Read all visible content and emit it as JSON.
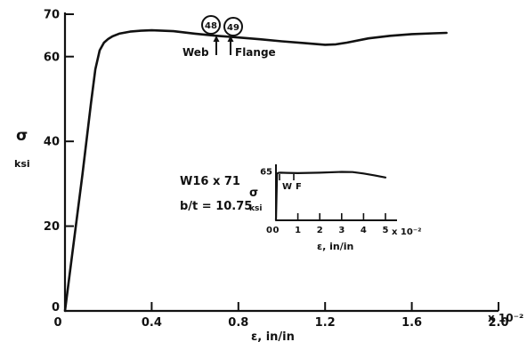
{
  "chart_data": [
    {
      "type": "line",
      "xlabel": "ε, in/in",
      "ylabel": "σ",
      "ylabel_unit": "ksi",
      "x_unit_multiplier": "x 10⁻²",
      "xlim": [
        0,
        2.0
      ],
      "ylim": [
        0,
        70
      ],
      "x_ticks": [
        "0",
        "0.4",
        "0.8",
        "1.2",
        "1.6",
        "2.0"
      ],
      "y_ticks": [
        "0",
        "20",
        "40",
        "60",
        "70"
      ],
      "grid": false,
      "series": [
        {
          "x": [
            0,
            0.03,
            0.08,
            0.12,
            0.14,
            0.16,
            0.18,
            0.2,
            0.22,
            0.25,
            0.3,
            0.35,
            0.4,
            0.5,
            0.6,
            0.7,
            0.8,
            0.9,
            1.0,
            1.1,
            1.2,
            1.25,
            1.3,
            1.4,
            1.5,
            1.6,
            1.7,
            1.76
          ],
          "values": [
            0,
            12,
            32,
            49,
            57,
            61.5,
            63.3,
            64.2,
            64.8,
            65.4,
            65.9,
            66.1,
            66.2,
            66.0,
            65.4,
            64.9,
            64.5,
            64.1,
            63.6,
            63.2,
            62.8,
            62.9,
            63.3,
            64.3,
            64.9,
            65.3,
            65.5,
            65.6
          ]
        }
      ],
      "annotations": [
        {
          "label": "48",
          "text": "Web",
          "x": 0.7
        },
        {
          "label": "49",
          "text": "Flange",
          "x": 0.76
        }
      ],
      "text_labels": [
        "W16 x 71",
        "b/t = 10.75"
      ]
    },
    {
      "type": "line",
      "xlabel": "ε, in/in",
      "ylabel": "σ",
      "ylabel_unit": "ksi",
      "x_unit_multiplier": "x 10⁻²",
      "xlim": [
        0,
        5
      ],
      "ylim": [
        0,
        65
      ],
      "x_ticks": [
        "0",
        "1",
        "2",
        "3",
        "4",
        "5"
      ],
      "y_ticks": [
        "0",
        "65"
      ],
      "grid": false,
      "series": [
        {
          "x": [
            0,
            0.05,
            0.1,
            0.2,
            0.5,
            1.0,
            2.0,
            3.0,
            3.5,
            4.0,
            4.5,
            5.0
          ],
          "values": [
            0,
            62,
            63,
            63.3,
            63.1,
            62.7,
            63.4,
            64.4,
            64.2,
            62.3,
            59.8,
            57.0
          ]
        }
      ],
      "annotations": [
        {
          "label": "W",
          "x": 0.1
        },
        {
          "label": "F",
          "x": 0.45
        }
      ]
    }
  ]
}
